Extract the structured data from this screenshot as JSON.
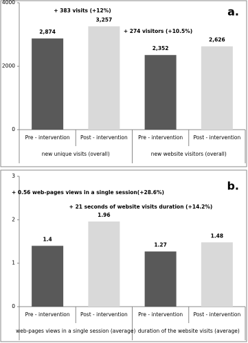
{
  "chart_data": [
    {
      "type": "bar",
      "title": "a.",
      "categories": [
        "Pre - intervention",
        "Post - intervention",
        "Pre - intervention",
        "Post - intervention"
      ],
      "groups": [
        "new unique visits (overall)",
        "new website visitors (overall)"
      ],
      "values": [
        2874,
        3257,
        2352,
        2626
      ],
      "value_labels": [
        "2,874",
        "3,257",
        "2,352",
        "2,626"
      ],
      "colors": [
        "#595959",
        "#d9d9d9",
        "#595959",
        "#d9d9d9"
      ],
      "annotations": [
        "+ 383 visits (+12%)",
        "+ 274 visitors (+10.5%)"
      ],
      "ylim": [
        0,
        4000
      ],
      "yticks": [
        0,
        2000,
        4000
      ]
    },
    {
      "type": "bar",
      "title": "b.",
      "categories": [
        "Pre - intervention",
        "Post - intervention",
        "Pre - intervention",
        "Post - intervention"
      ],
      "groups": [
        "web-pages views in a single session (average)",
        "duration of the website visits (average)"
      ],
      "values": [
        1.4,
        1.96,
        1.27,
        1.48
      ],
      "colors": [
        "#595959",
        "#d9d9d9",
        "#595959",
        "#d9d9d9"
      ],
      "annotations": [
        "+ 0.56 web-pages views  in a single session(+28.6%)",
        "+ 21 seconds of website visits duration  (+14.2%)"
      ],
      "ylim": [
        0,
        3
      ],
      "yticks": [
        0,
        1,
        2,
        3
      ]
    }
  ]
}
